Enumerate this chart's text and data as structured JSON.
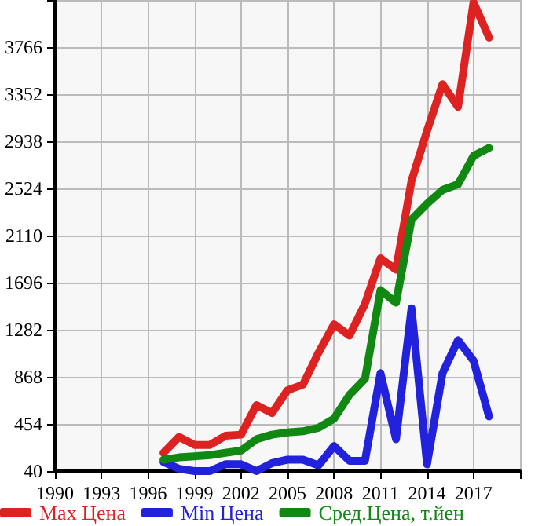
{
  "chart_data": {
    "type": "line",
    "x": [
      1997,
      1998,
      1999,
      2000,
      2001,
      2002,
      2003,
      2004,
      2005,
      2006,
      2007,
      2008,
      2009,
      2010,
      2011,
      2012,
      2013,
      2014,
      2015,
      2016,
      2017,
      2018
    ],
    "series": [
      {
        "name": "Max Цена",
        "color": "#dd2222",
        "values": [
          200,
          340,
          270,
          270,
          350,
          360,
          620,
          550,
          750,
          800,
          1080,
          1330,
          1230,
          1510,
          1910,
          1810,
          2590,
          3030,
          3440,
          3240,
          4160,
          3850
        ]
      },
      {
        "name": "Min Цена",
        "color": "#2222dd",
        "values": [
          120,
          60,
          40,
          40,
          100,
          100,
          40,
          110,
          140,
          140,
          90,
          260,
          130,
          130,
          900,
          320,
          1470,
          100,
          900,
          1190,
          1010,
          520
        ]
      },
      {
        "name": "Сред.Цена, т.йен",
        "color": "#118811",
        "values": [
          140,
          160,
          170,
          180,
          200,
          220,
          320,
          360,
          380,
          390,
          420,
          500,
          710,
          850,
          1630,
          1520,
          2250,
          2390,
          2510,
          2560,
          2810,
          2880
        ]
      }
    ],
    "xlim": [
      1990,
      2020
    ],
    "xticks": [
      1990,
      1993,
      1996,
      1999,
      2002,
      2005,
      2008,
      2011,
      2014,
      2017,
      {
        "value": 2020,
        "label": null
      }
    ],
    "ylim": [
      40,
      4180
    ],
    "yticks": [
      40,
      454,
      868,
      1282,
      1696,
      2110,
      2524,
      2938,
      3352,
      3766,
      {
        "value": 4180,
        "label": null
      }
    ],
    "grid": true,
    "legend": "bottom",
    "marker": "none",
    "line_style": "solid"
  }
}
